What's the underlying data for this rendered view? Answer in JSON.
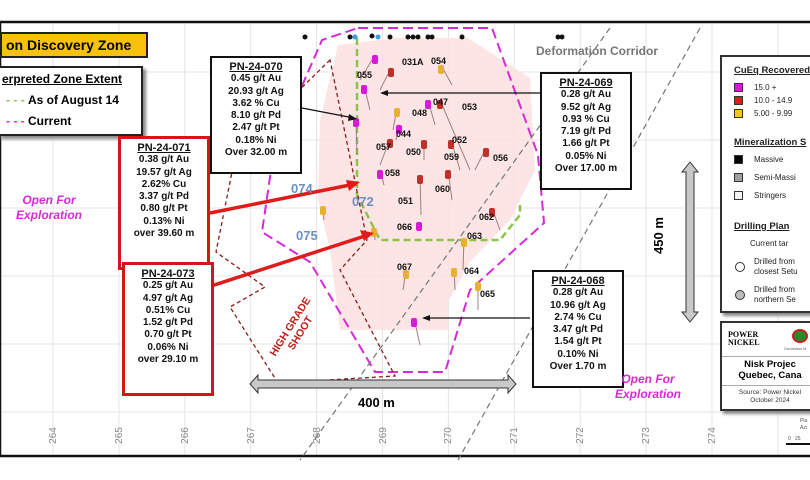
{
  "title": "on Discovery Zone",
  "zone_legend": {
    "heading": "erpreted Zone Extent",
    "items": [
      {
        "label": "As of August 14",
        "color": "#8cc34a"
      },
      {
        "label": "Current",
        "color": "#d62ad6"
      }
    ]
  },
  "labels": {
    "deformation": "Deformation Corridor",
    "open_left": [
      "Open For",
      "Exploration"
    ],
    "open_right": [
      "Open For",
      "Exploration"
    ],
    "high_grade": [
      "HIGH GRADE",
      "SHOOT"
    ],
    "width": "400 m",
    "height": "450 m"
  },
  "intercepts": [
    {
      "id": "PN-24-070",
      "lines": [
        "0.45 g/t Au",
        "20.93 g/t Ag",
        "3.62 % Cu",
        "8.10 g/t Pd",
        "2.47 g/t Pt",
        "0.18% Ni",
        "Over 32.00 m"
      ]
    },
    {
      "id": "PN-24-069",
      "lines": [
        "0.28 g/t Au",
        "9.52 g/t Ag",
        "0.93 % Cu",
        "7.19 g/t Pd",
        "1.66 g/t Pt",
        "0.05% Ni",
        "Over 17.00 m"
      ]
    },
    {
      "id": "PN-24-071",
      "lines": [
        "0.38 g/t Au",
        "19.57 g/t Ag",
        "2.62% Cu",
        "3.37 g/t Pd",
        "0.80 g/t Pt",
        "0.13% Ni",
        "over 39.60 m"
      ]
    },
    {
      "id": "PN-24-073",
      "lines": [
        "0.25 g/t Au",
        "4.97 g/t Ag",
        "0.51% Cu",
        "1.52 g/t Pd",
        "0.70 g/t Pt",
        "0.06% Ni",
        "over 29.10 m"
      ]
    },
    {
      "id": "PN-24-068",
      "lines": [
        "0.28 g/t Au",
        "10.96 g/t Ag",
        "2.74 % Cu",
        "3.47 g/t Pd",
        "1.54 g/t Pt",
        "0.10% Ni",
        "Over 1.70 m"
      ]
    }
  ],
  "holes": [
    "055",
    "031A",
    "054",
    "048",
    "047",
    "053",
    "044",
    "057",
    "050",
    "052",
    "059",
    "056",
    "058",
    "060",
    "051",
    "062",
    "066",
    "063",
    "067",
    "064",
    "065"
  ],
  "blue_holes": [
    "074",
    "072",
    "075"
  ],
  "axis_ticks": [
    "264",
    "265",
    "266",
    "267",
    "268",
    "269",
    "270",
    "271",
    "272",
    "273",
    "274"
  ],
  "legend": {
    "cueq_heading": "CuEq Recovered",
    "cueq": [
      {
        "label": "15.0 +",
        "color": "#d61ad6"
      },
      {
        "label": "10.0 - 14.9",
        "color": "#e01b1b"
      },
      {
        "label": "5.00 - 9.99",
        "color": "#f5c226"
      }
    ],
    "min_heading": "Mineralization S",
    "min": [
      {
        "label": "Massive",
        "color": "#000000"
      },
      {
        "label": "Semi-Massi",
        "color": "#a0a0a0"
      },
      {
        "label": "Stringers",
        "color": "#f2f2f2"
      }
    ],
    "drill_heading": "Drilling Plan",
    "drill_current": "Current tar",
    "drill": [
      {
        "lines": [
          "Drilled from",
          "closest Setu"
        ],
        "fill": "#ffffff"
      },
      {
        "lines": [
          "Drilled from",
          "northern Se"
        ],
        "fill": "#bdbdbd"
      }
    ]
  },
  "logo": {
    "brand": [
      "POWER",
      "NICKEL"
    ],
    "partner": "GeoVectors M",
    "project": [
      "Nisk Projec",
      "Quebec, Cana"
    ],
    "source": [
      "Source: Power Nickel",
      "October 2024"
    ]
  },
  "scale": {
    "label": [
      "Pla",
      "Azi"
    ],
    "ticks": [
      "0",
      "25"
    ]
  }
}
